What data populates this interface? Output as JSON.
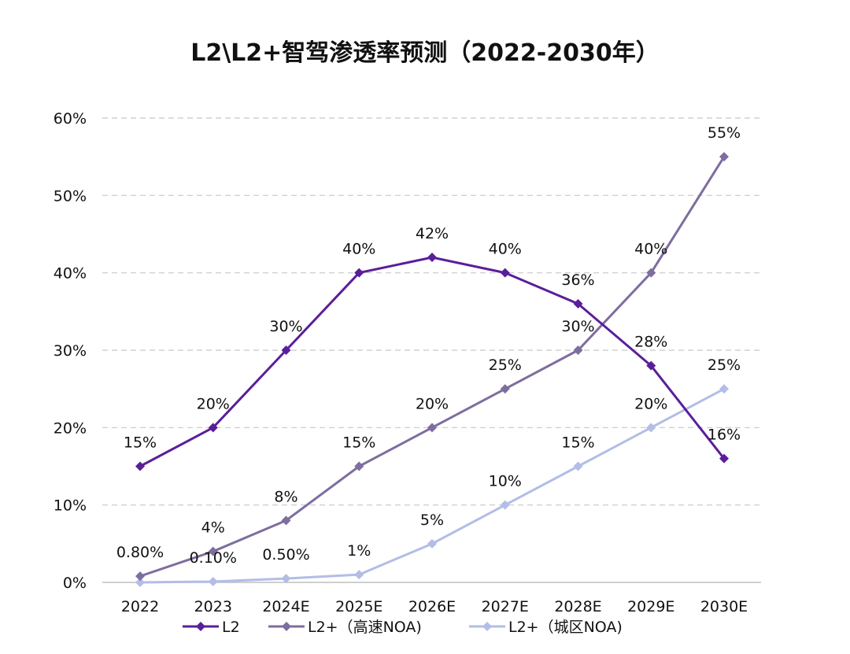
{
  "chart_data": {
    "type": "line",
    "title": "L2\\L2+智驾渗透率预测（2022-2030年）",
    "categories": [
      "2022",
      "2023",
      "2024E",
      "2025E",
      "2026E",
      "2027E",
      "2028E",
      "2029E",
      "2030E"
    ],
    "ylim": [
      0,
      60
    ],
    "yticks": [
      "0%",
      "10%",
      "20%",
      "30%",
      "40%",
      "50%",
      "60%"
    ],
    "grid": true,
    "legend_position": "bottom",
    "series": [
      {
        "name": "L2",
        "color": "#5a1e99",
        "values": [
          15,
          20,
          30,
          40,
          42,
          40,
          36,
          28,
          16
        ],
        "labels": [
          "15%",
          "20%",
          "30%",
          "40%",
          "42%",
          "40%",
          "36%",
          "28%",
          "16%"
        ]
      },
      {
        "name": "L2+（高速NOA)",
        "color": "#7e6d9f",
        "values": [
          0.8,
          4,
          8,
          15,
          20,
          25,
          30,
          40,
          55
        ],
        "labels": [
          "0.80%",
          "4%",
          "8%",
          "15%",
          "20%",
          "25%",
          "30%",
          "40%",
          "55%"
        ]
      },
      {
        "name": "L2+（城区NOA)",
        "color": "#b3bde6",
        "values": [
          0,
          0.1,
          0.5,
          1,
          5,
          10,
          15,
          20,
          25
        ],
        "labels": [
          "",
          "0.10%",
          "0.50%",
          "1%",
          "5%",
          "10%",
          "15%",
          "20%",
          "25%"
        ]
      }
    ]
  }
}
